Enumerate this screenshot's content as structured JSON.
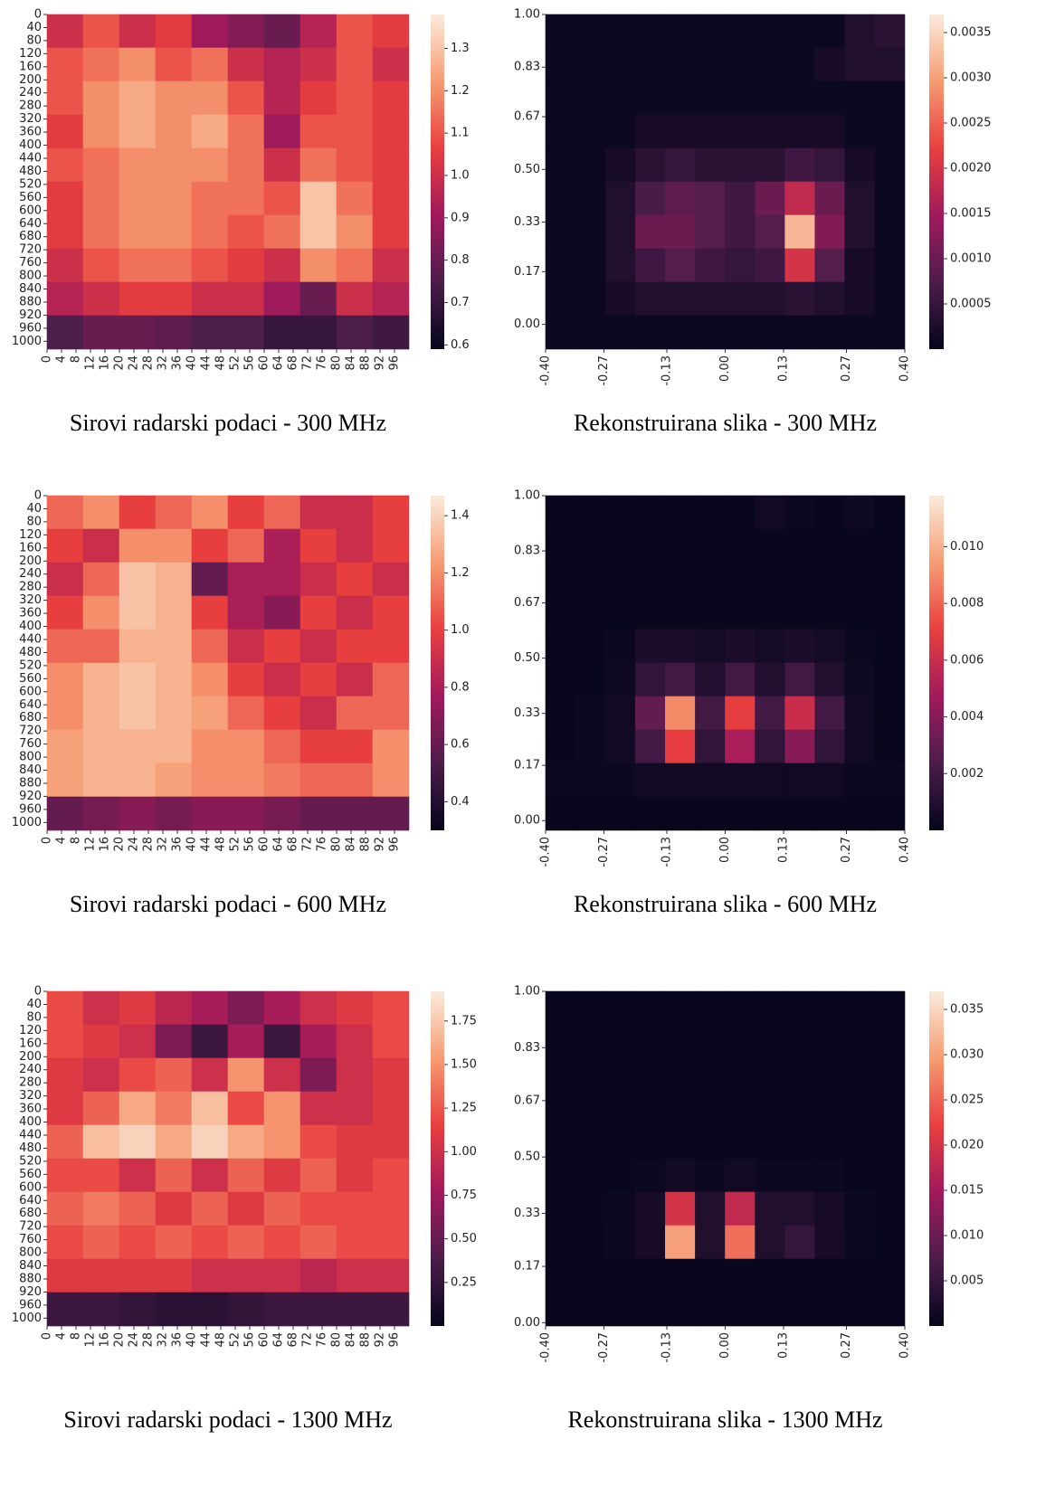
{
  "chart_data": [
    {
      "type": "heatmap",
      "title": "Sirovi radarski podaci - 300 MHz",
      "colormap": [
        "#03051a",
        "#4c1d4b",
        "#a11a5b",
        "#e83f3f",
        "#f69c73",
        "#faebdd"
      ],
      "xlim": [
        0,
        100
      ],
      "ylim": [
        0,
        1024
      ],
      "xticks": [
        0,
        4,
        8,
        12,
        16,
        20,
        24,
        28,
        32,
        36,
        40,
        44,
        48,
        52,
        56,
        60,
        64,
        68,
        72,
        76,
        80,
        84,
        88,
        92,
        96
      ],
      "yticks": [
        0,
        40,
        80,
        120,
        160,
        200,
        240,
        280,
        320,
        360,
        400,
        440,
        480,
        520,
        560,
        600,
        640,
        680,
        720,
        760,
        800,
        840,
        880,
        920,
        960,
        1000
      ],
      "clim": [
        0.59,
        1.38
      ],
      "cticks": [
        0.6,
        0.7,
        0.8,
        0.9,
        {
          "value": 1,
          "label": "1.0"
        },
        1.1,
        1.2,
        1.3
      ],
      "z": [
        [
          1.0,
          1.1,
          1.0,
          1.05,
          0.9,
          0.85,
          0.8,
          0.95,
          1.1,
          1.05
        ],
        [
          1.1,
          1.15,
          1.2,
          1.1,
          1.15,
          1.0,
          0.95,
          1.0,
          1.1,
          1.0
        ],
        [
          1.1,
          1.2,
          1.25,
          1.2,
          1.2,
          1.1,
          0.95,
          1.05,
          1.1,
          1.05
        ],
        [
          1.05,
          1.2,
          1.25,
          1.2,
          1.25,
          1.15,
          0.9,
          1.1,
          1.1,
          1.05
        ],
        [
          1.1,
          1.15,
          1.2,
          1.2,
          1.2,
          1.15,
          1.0,
          1.15,
          1.1,
          1.05
        ],
        [
          1.05,
          1.15,
          1.2,
          1.2,
          1.15,
          1.15,
          1.1,
          1.3,
          1.15,
          1.05
        ],
        [
          1.05,
          1.15,
          1.2,
          1.2,
          1.15,
          1.1,
          1.15,
          1.3,
          1.2,
          1.05
        ],
        [
          1.0,
          1.1,
          1.15,
          1.15,
          1.1,
          1.05,
          1.0,
          1.2,
          1.15,
          1.0
        ],
        [
          0.95,
          1.0,
          1.05,
          1.05,
          1.0,
          1.0,
          0.9,
          0.8,
          1.0,
          0.95
        ],
        [
          0.75,
          0.8,
          0.8,
          0.78,
          0.75,
          0.75,
          0.7,
          0.7,
          0.75,
          0.72
        ]
      ]
    },
    {
      "type": "heatmap",
      "title": "Rekonstruirana slika - 300 MHz",
      "colormap": [
        "#03051a",
        "#4c1d4b",
        "#a11a5b",
        "#e83f3f",
        "#f69c73",
        "#faebdd"
      ],
      "xlim": [
        -0.4,
        0.4
      ],
      "ylim": [
        1,
        -0.08
      ],
      "xticks": [
        {
          "value": -0.4,
          "label": "-0.40"
        },
        -0.27,
        -0.13,
        {
          "value": 0,
          "label": "0.00"
        },
        0.13,
        0.27,
        {
          "value": 0.4,
          "label": "0.40"
        }
      ],
      "yticks": [
        {
          "value": 0,
          "label": "0.00"
        },
        0.17,
        0.33,
        {
          "value": 0.5,
          "label": "0.50"
        },
        0.67,
        0.83,
        {
          "value": 1,
          "label": "1.00"
        }
      ],
      "clim": [
        0,
        0.0037
      ],
      "cticks": [
        0.0005,
        {
          "value": 0.001,
          "label": "0.0010"
        },
        0.0015,
        {
          "value": 0.002,
          "label": "0.0020"
        },
        0.0025,
        {
          "value": 0.003,
          "label": "0.0030"
        },
        0.0035
      ],
      "z": [
        [
          0.0001,
          0.0001,
          0.0001,
          0.0001,
          0.0001,
          0.0001,
          0.0001,
          0.0001,
          0.0001,
          0.0001,
          0.0003,
          0.0004
        ],
        [
          0.0001,
          0.0001,
          0.0001,
          0.0001,
          0.0001,
          0.0001,
          0.0001,
          0.0001,
          0.0001,
          0.0002,
          0.0003,
          0.0003
        ],
        [
          0.0001,
          0.0001,
          0.0001,
          0.0001,
          0.0001,
          0.0001,
          0.0001,
          0.0001,
          0.0001,
          0.0001,
          0.0001,
          0.0001
        ],
        [
          0.0001,
          0.0001,
          0.0001,
          0.0002,
          0.0002,
          0.0002,
          0.0002,
          0.0002,
          0.0002,
          0.0002,
          0.0001,
          0.0001
        ],
        [
          0.0001,
          0.0001,
          0.0002,
          0.0004,
          0.0005,
          0.0004,
          0.0004,
          0.0004,
          0.0006,
          0.0005,
          0.0002,
          0.0001
        ],
        [
          0.0001,
          0.0001,
          0.0003,
          0.0007,
          0.0009,
          0.0008,
          0.0006,
          0.001,
          0.0018,
          0.001,
          0.0003,
          0.0001
        ],
        [
          0.0001,
          0.0001,
          0.0003,
          0.001,
          0.001,
          0.0008,
          0.0006,
          0.0008,
          0.0032,
          0.0012,
          0.0003,
          0.0001
        ],
        [
          0.0001,
          0.0001,
          0.0003,
          0.0006,
          0.0008,
          0.0006,
          0.0005,
          0.0006,
          0.002,
          0.0008,
          0.0002,
          0.0001
        ],
        [
          0.0001,
          0.0001,
          0.0002,
          0.0003,
          0.0003,
          0.0003,
          0.0003,
          0.0003,
          0.0004,
          0.0003,
          0.0002,
          0.0001
        ],
        [
          0.0001,
          0.0001,
          0.0001,
          0.0001,
          0.0001,
          0.0001,
          0.0001,
          0.0001,
          0.0001,
          0.0001,
          0.0001,
          0.0001
        ]
      ]
    },
    {
      "type": "heatmap",
      "title": "Sirovi radarski podaci - 600 MHz",
      "colormap": [
        "#03051a",
        "#4c1d4b",
        "#a11a5b",
        "#e83f3f",
        "#f69c73",
        "#faebdd"
      ],
      "xlim": [
        0,
        100
      ],
      "ylim": [
        0,
        1024
      ],
      "xticks": [
        0,
        4,
        8,
        12,
        16,
        20,
        24,
        28,
        32,
        36,
        40,
        44,
        48,
        52,
        56,
        60,
        64,
        68,
        72,
        76,
        80,
        84,
        88,
        92,
        96
      ],
      "yticks": [
        0,
        40,
        80,
        120,
        160,
        200,
        240,
        280,
        320,
        360,
        400,
        440,
        480,
        520,
        560,
        600,
        640,
        680,
        720,
        760,
        800,
        840,
        880,
        920,
        960,
        1000
      ],
      "clim": [
        0.3,
        1.47
      ],
      "cticks": [
        0.4,
        0.6,
        0.8,
        {
          "value": 1,
          "label": "1.0"
        },
        1.2,
        1.4
      ],
      "z": [
        [
          1.1,
          1.2,
          1.0,
          1.1,
          1.2,
          1.0,
          1.1,
          0.9,
          0.9,
          1.0
        ],
        [
          1.0,
          0.9,
          1.2,
          1.2,
          1.0,
          1.1,
          0.8,
          1.0,
          0.9,
          1.0
        ],
        [
          0.9,
          1.1,
          1.35,
          1.3,
          0.6,
          0.8,
          0.8,
          0.9,
          1.0,
          0.9
        ],
        [
          1.0,
          1.2,
          1.35,
          1.3,
          1.0,
          0.8,
          0.7,
          1.0,
          0.9,
          1.0
        ],
        [
          1.1,
          1.1,
          1.3,
          1.3,
          1.1,
          0.9,
          1.0,
          0.9,
          1.0,
          1.0
        ],
        [
          1.2,
          1.3,
          1.35,
          1.3,
          1.2,
          1.0,
          0.9,
          1.0,
          0.9,
          1.1
        ],
        [
          1.2,
          1.3,
          1.35,
          1.3,
          1.25,
          1.1,
          1.0,
          0.9,
          1.1,
          1.1
        ],
        [
          1.25,
          1.3,
          1.3,
          1.3,
          1.2,
          1.2,
          1.1,
          1.0,
          1.0,
          1.2
        ],
        [
          1.25,
          1.3,
          1.3,
          1.25,
          1.2,
          1.2,
          1.15,
          1.1,
          1.1,
          1.2
        ],
        [
          0.6,
          0.65,
          0.7,
          0.65,
          0.7,
          0.7,
          0.65,
          0.6,
          0.6,
          0.6
        ]
      ]
    },
    {
      "type": "heatmap",
      "title": "Rekonstruirana slika - 600 MHz",
      "colormap": [
        "#03051a",
        "#4c1d4b",
        "#a11a5b",
        "#e83f3f",
        "#f69c73",
        "#faebdd"
      ],
      "xlim": [
        -0.4,
        0.4
      ],
      "ylim": [
        1,
        -0.03
      ],
      "xticks": [
        {
          "value": -0.4,
          "label": "-0.40"
        },
        -0.27,
        -0.13,
        {
          "value": 0,
          "label": "0.00"
        },
        0.13,
        0.27,
        {
          "value": 0.4,
          "label": "0.40"
        }
      ],
      "yticks": [
        {
          "value": 0,
          "label": "0.00"
        },
        0.17,
        0.33,
        {
          "value": 0.5,
          "label": "0.50"
        },
        0.67,
        0.83,
        {
          "value": 1,
          "label": "1.00"
        }
      ],
      "clim": [
        0,
        0.0118
      ],
      "cticks": [
        0.002,
        0.004,
        0.006,
        0.008,
        {
          "value": 0.01,
          "label": "0.010"
        }
      ],
      "z": [
        [
          0.0002,
          0.0002,
          0.0002,
          0.0002,
          0.0002,
          0.0002,
          0.0002,
          0.0005,
          0.0003,
          0.0002,
          0.0004,
          0.0002
        ],
        [
          0.0002,
          0.0002,
          0.0002,
          0.0002,
          0.0002,
          0.0002,
          0.0002,
          0.0002,
          0.0002,
          0.0002,
          0.0002,
          0.0002
        ],
        [
          0.0002,
          0.0002,
          0.0002,
          0.0002,
          0.0002,
          0.0002,
          0.0002,
          0.0002,
          0.0002,
          0.0002,
          0.0002,
          0.0002
        ],
        [
          0.0002,
          0.0002,
          0.0002,
          0.0002,
          0.0002,
          0.0002,
          0.0002,
          0.0002,
          0.0002,
          0.0002,
          0.0002,
          0.0002
        ],
        [
          0.0002,
          0.0002,
          0.0003,
          0.0008,
          0.0008,
          0.0006,
          0.0008,
          0.0006,
          0.0008,
          0.0006,
          0.0003,
          0.0002
        ],
        [
          0.0002,
          0.0002,
          0.0004,
          0.0015,
          0.002,
          0.001,
          0.002,
          0.001,
          0.002,
          0.001,
          0.0004,
          0.0002
        ],
        [
          0.0002,
          0.0003,
          0.0005,
          0.003,
          0.009,
          0.002,
          0.007,
          0.002,
          0.006,
          0.002,
          0.0005,
          0.0002
        ],
        [
          0.0002,
          0.0003,
          0.0005,
          0.002,
          0.007,
          0.0015,
          0.005,
          0.0015,
          0.004,
          0.0015,
          0.0005,
          0.0002
        ],
        [
          0.0003,
          0.0003,
          0.0003,
          0.0005,
          0.0005,
          0.0005,
          0.0005,
          0.0005,
          0.0005,
          0.0005,
          0.0003,
          0.0003
        ],
        [
          0.0002,
          0.0002,
          0.0002,
          0.0002,
          0.0002,
          0.0002,
          0.0002,
          0.0002,
          0.0002,
          0.0002,
          0.0002,
          0.0002
        ]
      ]
    },
    {
      "type": "heatmap",
      "title": "Sirovi radarski podaci - 1300 MHz",
      "colormap": [
        "#03051a",
        "#4c1d4b",
        "#a11a5b",
        "#e83f3f",
        "#f69c73",
        "#faebdd"
      ],
      "xlim": [
        0,
        100
      ],
      "ylim": [
        0,
        1024
      ],
      "xticks": [
        0,
        4,
        8,
        12,
        16,
        20,
        24,
        28,
        32,
        36,
        40,
        44,
        48,
        52,
        56,
        60,
        64,
        68,
        72,
        76,
        80,
        84,
        88,
        92,
        96
      ],
      "yticks": [
        0,
        40,
        80,
        120,
        160,
        200,
        240,
        280,
        320,
        360,
        400,
        440,
        480,
        520,
        560,
        600,
        640,
        680,
        720,
        760,
        800,
        840,
        880,
        920,
        960,
        1000
      ],
      "clim": [
        0,
        1.92
      ],
      "cticks": [
        0.25,
        {
          "value": 0.5,
          "label": "0.50"
        },
        0.75,
        {
          "value": 1,
          "label": "1.00"
        },
        1.25,
        {
          "value": 1.5,
          "label": "1.50"
        },
        1.75
      ],
      "z": [
        [
          1.2,
          1.0,
          1.1,
          0.9,
          0.8,
          0.6,
          0.8,
          1.0,
          1.1,
          1.2
        ],
        [
          1.2,
          1.1,
          1.0,
          0.6,
          0.3,
          0.8,
          0.3,
          0.8,
          1.0,
          1.2
        ],
        [
          1.1,
          1.0,
          1.2,
          1.3,
          1.0,
          1.5,
          1.0,
          0.6,
          1.0,
          1.1
        ],
        [
          1.1,
          1.3,
          1.6,
          1.4,
          1.7,
          1.2,
          1.5,
          1.0,
          1.0,
          1.1
        ],
        [
          1.3,
          1.7,
          1.8,
          1.6,
          1.8,
          1.6,
          1.5,
          1.2,
          1.1,
          1.1
        ],
        [
          1.2,
          1.2,
          1.0,
          1.3,
          1.0,
          1.3,
          1.1,
          1.3,
          1.1,
          1.2
        ],
        [
          1.3,
          1.4,
          1.3,
          1.1,
          1.3,
          1.1,
          1.3,
          1.2,
          1.2,
          1.2
        ],
        [
          1.2,
          1.3,
          1.2,
          1.3,
          1.2,
          1.3,
          1.2,
          1.3,
          1.2,
          1.2
        ],
        [
          1.1,
          1.1,
          1.1,
          1.1,
          1.0,
          1.0,
          1.0,
          0.9,
          1.0,
          1.0
        ],
        [
          0.3,
          0.3,
          0.25,
          0.2,
          0.2,
          0.25,
          0.3,
          0.3,
          0.3,
          0.3
        ]
      ]
    },
    {
      "type": "heatmap",
      "title": "Rekonstruirana slika - 1300 MHz",
      "colormap": [
        "#03051a",
        "#4c1d4b",
        "#a11a5b",
        "#e83f3f",
        "#f69c73",
        "#faebdd"
      ],
      "xlim": [
        -0.4,
        0.4
      ],
      "ylim": [
        1,
        -0.01
      ],
      "xticks": [
        {
          "value": -0.4,
          "label": "-0.40"
        },
        -0.27,
        -0.13,
        {
          "value": 0,
          "label": "0.00"
        },
        0.13,
        0.27,
        {
          "value": 0.4,
          "label": "0.40"
        }
      ],
      "yticks": [
        {
          "value": 0,
          "label": "0.00"
        },
        0.17,
        0.33,
        {
          "value": 0.5,
          "label": "0.50"
        },
        0.67,
        0.83,
        {
          "value": 1,
          "label": "1.00"
        }
      ],
      "clim": [
        0,
        0.037
      ],
      "cticks": [
        0.005,
        {
          "value": 0.01,
          "label": "0.010"
        },
        0.015,
        {
          "value": 0.02,
          "label": "0.020"
        },
        0.025,
        {
          "value": 0.03,
          "label": "0.030"
        },
        0.035
      ],
      "z": [
        [
          0.0005,
          0.0005,
          0.0005,
          0.0005,
          0.0005,
          0.0005,
          0.0005,
          0.0005,
          0.0005,
          0.0005,
          0.0005,
          0.0005
        ],
        [
          0.0005,
          0.0005,
          0.0005,
          0.0005,
          0.0005,
          0.0005,
          0.0005,
          0.0005,
          0.0005,
          0.0005,
          0.0005,
          0.0005
        ],
        [
          0.0005,
          0.0005,
          0.0005,
          0.0005,
          0.0005,
          0.0005,
          0.0005,
          0.0005,
          0.0005,
          0.0005,
          0.0005,
          0.0005
        ],
        [
          0.0005,
          0.0005,
          0.0005,
          0.0005,
          0.0005,
          0.0005,
          0.0005,
          0.0005,
          0.0005,
          0.0005,
          0.0005,
          0.0005
        ],
        [
          0.0005,
          0.0005,
          0.0005,
          0.0005,
          0.0005,
          0.0005,
          0.0005,
          0.0005,
          0.0005,
          0.0005,
          0.0005,
          0.0005
        ],
        [
          0.0005,
          0.0005,
          0.0005,
          0.0008,
          0.0015,
          0.001,
          0.0015,
          0.001,
          0.001,
          0.0008,
          0.0005,
          0.0005
        ],
        [
          0.0005,
          0.0005,
          0.0008,
          0.002,
          0.02,
          0.003,
          0.018,
          0.003,
          0.003,
          0.002,
          0.0008,
          0.0005
        ],
        [
          0.0005,
          0.0005,
          0.001,
          0.002,
          0.03,
          0.003,
          0.026,
          0.003,
          0.005,
          0.002,
          0.001,
          0.0005
        ],
        [
          0.0005,
          0.0005,
          0.0005,
          0.0005,
          0.0005,
          0.0005,
          0.0005,
          0.0005,
          0.0005,
          0.0005,
          0.0005,
          0.0005
        ],
        [
          0.0005,
          0.0005,
          0.0005,
          0.0005,
          0.0005,
          0.0005,
          0.0005,
          0.0005,
          0.0005,
          0.0005,
          0.0005,
          0.0005
        ]
      ]
    }
  ]
}
